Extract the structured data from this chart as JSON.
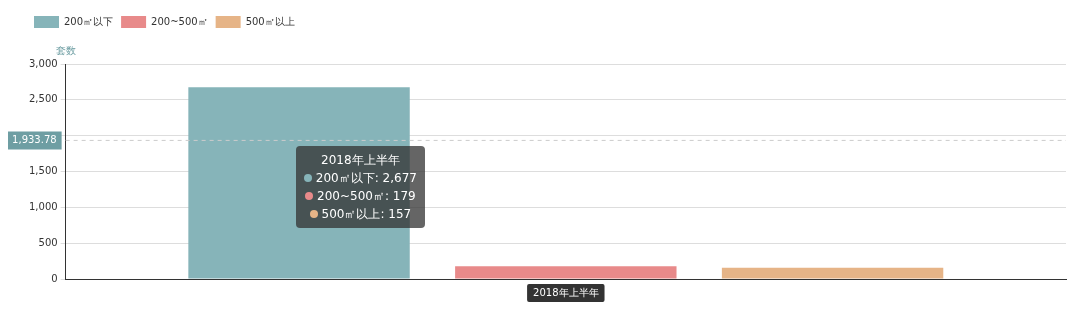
{
  "chart_data": {
    "type": "bar",
    "ylabel": "套数",
    "categories": [
      "2018年上半年"
    ],
    "series": [
      {
        "name": "200㎡以下",
        "color": "#86b4b9",
        "values": [
          2677
        ]
      },
      {
        "name": "200~500㎡",
        "color": "#e88a8a",
        "values": [
          179
        ]
      },
      {
        "name": "500㎡以上",
        "color": "#e6b487",
        "values": [
          157
        ]
      }
    ],
    "ylim": [
      0,
      3000
    ],
    "yticks": [
      0,
      500,
      {
        "value": 1000,
        "label": "1,000"
      },
      {
        "value": 1500,
        "label": "1,500"
      },
      {
        "value": 2000,
        "label": null
      },
      {
        "value": 2500,
        "label": "2,500"
      },
      {
        "value": 3000,
        "label": "3,000"
      }
    ],
    "ref_lines": [
      {
        "axis": "y",
        "value": 1933.78,
        "label": "1,933.78",
        "line_style": "dashed",
        "color": "#cccccc"
      }
    ],
    "annotations": [
      "2018年上半年",
      "200㎡以下: 2,677",
      "200~500㎡: 179",
      "500㎡以上: 157"
    ],
    "grid": "y",
    "legend": "top left"
  }
}
